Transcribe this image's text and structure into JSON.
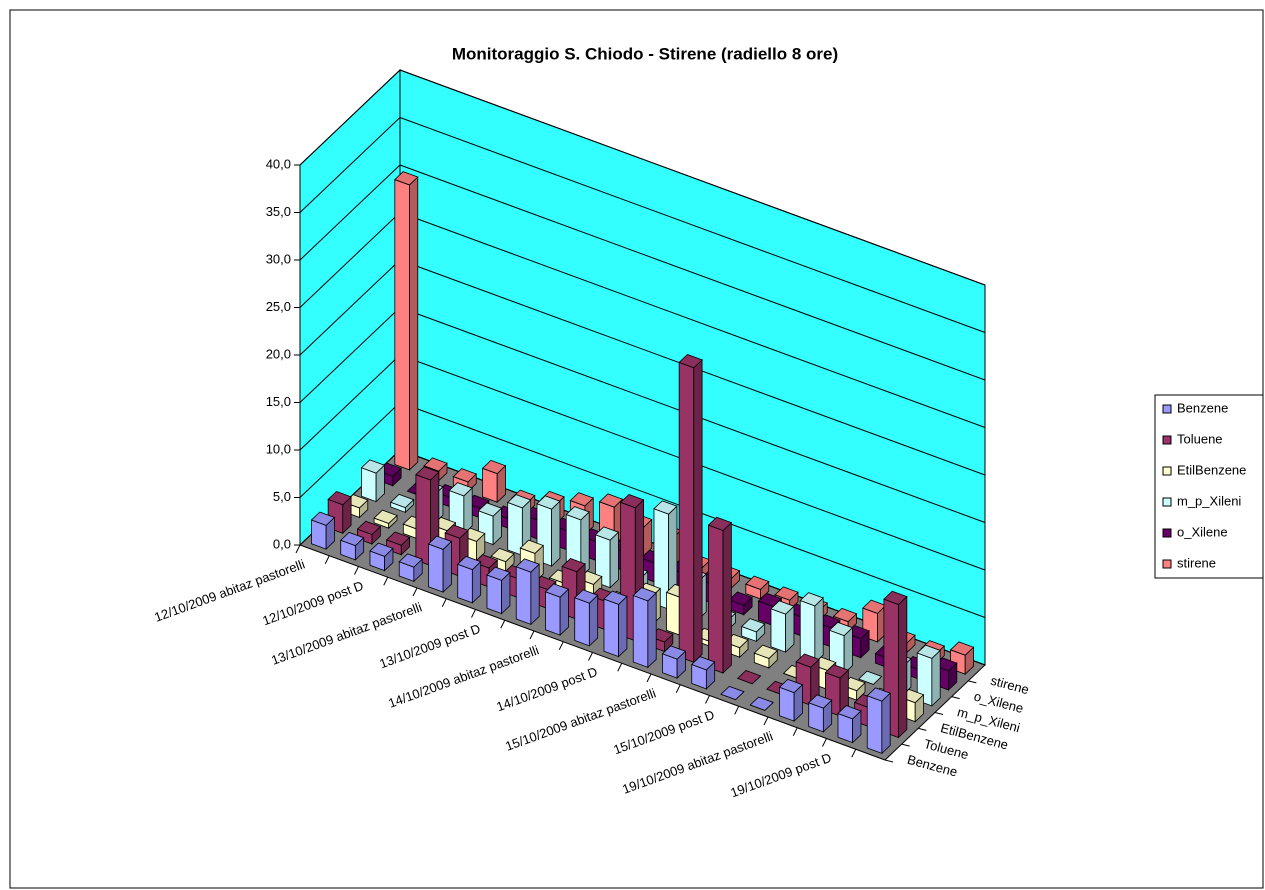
{
  "chart_data": {
    "type": "bar3d",
    "title": "Monitoraggio S. Chiodo - Stirene (radiello 8 ore)",
    "categories": [
      "12/10/2009 abitaz pastorelli",
      null,
      "12/10/2009 post D",
      null,
      "13/10/2009 abitaz pastorelli",
      null,
      "13/10/2009 post D",
      null,
      "14/10/2009 abitaz pastorelli",
      null,
      "14/10/2009 post D",
      null,
      "15/10/2009 abitaz pastorelli",
      null,
      "15/10/2009 post D",
      null,
      "19/10/2009 abitaz pastorelli",
      null,
      "19/10/2009 post D",
      null
    ],
    "series": [
      {
        "name": "Benzene",
        "color": "#9999ff",
        "values": [
          2.5,
          1.5,
          1.5,
          1.5,
          4.5,
          3.5,
          3.5,
          5.5,
          4,
          4.5,
          5.5,
          7,
          2,
          2,
          0,
          0,
          3,
          2.5,
          2.5,
          5.5
        ]
      },
      {
        "name": "Toluene",
        "color": "#993366",
        "values": [
          3,
          1,
          1,
          9,
          4,
          2,
          2,
          2,
          5,
          3,
          14,
          1,
          31,
          15,
          0,
          0,
          4,
          4,
          2,
          14
        ]
      },
      {
        "name": "EtilBenzene",
        "color": "#ffffcc",
        "values": [
          1,
          0.5,
          1,
          2,
          2,
          1,
          3,
          1,
          2,
          1,
          3,
          4,
          0.5,
          1,
          1,
          0,
          2,
          1,
          1,
          2
        ]
      },
      {
        "name": "m_p_Xileni",
        "color": "#ccffff",
        "values": [
          3,
          0.5,
          3,
          4,
          3,
          5,
          6,
          6,
          5,
          2,
          10,
          4,
          1,
          1,
          4,
          6,
          4,
          0,
          3,
          5
        ]
      },
      {
        "name": "o_Xilene",
        "color": "#660066",
        "values": [
          1,
          0,
          1,
          1,
          1,
          2,
          2,
          2,
          2,
          2,
          2,
          2,
          1,
          2,
          2,
          2,
          2,
          1,
          1,
          2
        ]
      },
      {
        "name": "stirene",
        "color": "#ff8080",
        "values": [
          30,
          1,
          1,
          3,
          1,
          2,
          3,
          4,
          3,
          3,
          1,
          1,
          1,
          1,
          1,
          1,
          3,
          1,
          1,
          2
        ]
      }
    ],
    "ylim": [
      0,
      40
    ],
    "yticks": [
      {
        "value": 0,
        "label": "0,0"
      },
      {
        "value": 5,
        "label": "5,0"
      },
      {
        "value": 10,
        "label": "10,0"
      },
      {
        "value": 15,
        "label": "15,0"
      },
      {
        "value": 20,
        "label": "20,0"
      },
      {
        "value": 25,
        "label": "25,0"
      },
      {
        "value": 30,
        "label": "30,0"
      },
      {
        "value": 35,
        "label": "35,0"
      },
      {
        "value": 40,
        "label": "40,0"
      }
    ],
    "grid": true,
    "legend": "right"
  }
}
